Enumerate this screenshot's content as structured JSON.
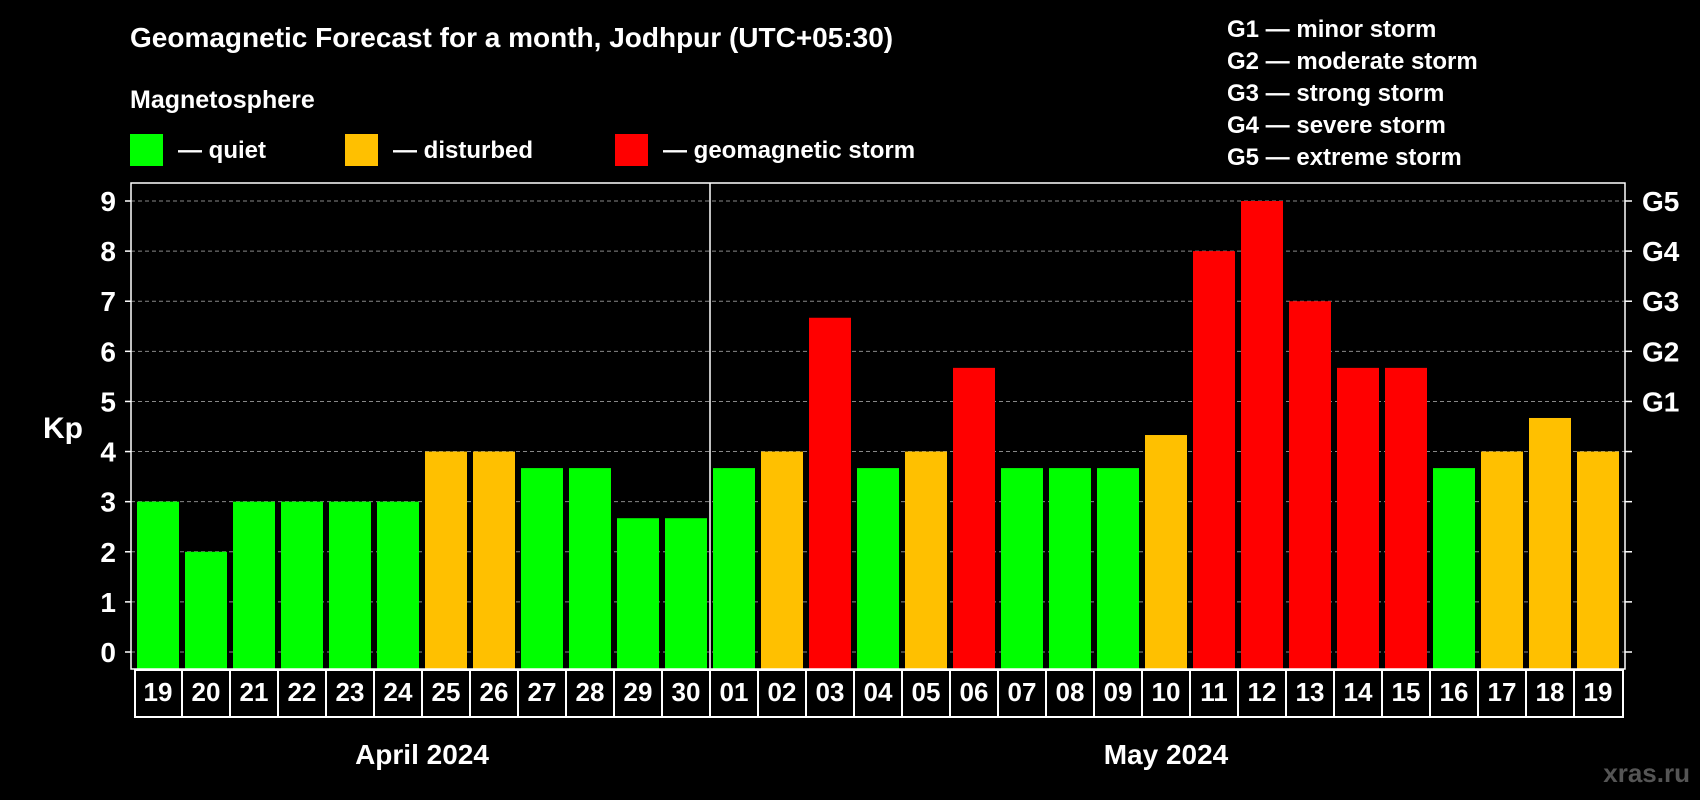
{
  "chart_data": {
    "type": "bar",
    "title": "Geomagnetic Forecast for a month, Jodhpur (UTC+05:30)",
    "ylabel": "Kp",
    "ylim": [
      0,
      9
    ],
    "yticks": [
      "0",
      "1",
      "2",
      "3",
      "4",
      "5",
      "6",
      "7",
      "8",
      "9"
    ],
    "grid": true,
    "legend": {
      "title": "Magnetosphere",
      "items": [
        {
          "label": "— quiet",
          "color": "#00ff00"
        },
        {
          "label": "— disturbed",
          "color": "#ffc000"
        },
        {
          "label": "— geomagnetic storm",
          "color": "#ff0000"
        }
      ]
    },
    "storm_levels": [
      {
        "label": "G1 — minor storm",
        "kp": 5,
        "tick": "G1"
      },
      {
        "label": "G2 — moderate storm",
        "kp": 6,
        "tick": "G2"
      },
      {
        "label": "G3 — strong storm",
        "kp": 7,
        "tick": "G3"
      },
      {
        "label": "G4 — severe storm",
        "kp": 8,
        "tick": "G4"
      },
      {
        "label": "G5 — extreme storm",
        "kp": 9,
        "tick": "G5"
      }
    ],
    "months": [
      {
        "label": "April 2024",
        "start": 0,
        "end": 11
      },
      {
        "label": "May 2024",
        "start": 12,
        "end": 30
      }
    ],
    "categories": [
      "19",
      "20",
      "21",
      "22",
      "23",
      "24",
      "25",
      "26",
      "27",
      "28",
      "29",
      "30",
      "01",
      "02",
      "03",
      "04",
      "05",
      "06",
      "07",
      "08",
      "09",
      "10",
      "11",
      "12",
      "13",
      "14",
      "15",
      "16",
      "17",
      "18",
      "19"
    ],
    "values": [
      3,
      2,
      3,
      3,
      3,
      3,
      4,
      4,
      3.67,
      3.67,
      2.67,
      2.67,
      3.67,
      4,
      6.67,
      3.67,
      4,
      5.67,
      3.67,
      3.67,
      3.67,
      4.33,
      8,
      9,
      7,
      5.67,
      5.67,
      3.67,
      4,
      4.67,
      4
    ],
    "levels": [
      "quiet",
      "quiet",
      "quiet",
      "quiet",
      "quiet",
      "quiet",
      "disturbed",
      "disturbed",
      "quiet",
      "quiet",
      "quiet",
      "quiet",
      "quiet",
      "disturbed",
      "storm",
      "quiet",
      "disturbed",
      "storm",
      "quiet",
      "quiet",
      "quiet",
      "disturbed",
      "storm",
      "storm",
      "storm",
      "storm",
      "storm",
      "quiet",
      "disturbed",
      "disturbed",
      "disturbed"
    ],
    "colors": {
      "quiet": "#00ff00",
      "disturbed": "#ffc000",
      "storm": "#ff0000",
      "grid": "#888888",
      "frame": "#ffffff"
    }
  },
  "watermark": "xras.ru"
}
